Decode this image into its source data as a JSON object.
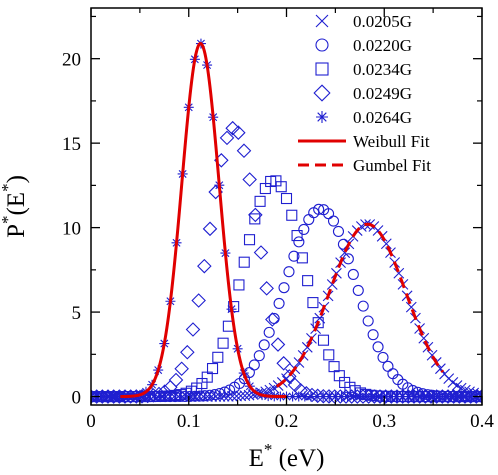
{
  "chart_data": {
    "type": "scatter",
    "xlabel": "E* (eV)",
    "ylabel": "P*(E*)",
    "xlabel_parts": {
      "main": "E",
      "sup": "*",
      "rest": " (eV)"
    },
    "ylabel_parts": {
      "a": "P",
      "a_sup": "*",
      "b": "(E",
      "b_sup": "*",
      "c": ")"
    },
    "xlim": [
      0,
      0.4
    ],
    "ylim": [
      -0.5,
      23
    ],
    "x_ticks": [
      0,
      0.1,
      0.2,
      0.3,
      0.4
    ],
    "x_tick_labels": [
      "0",
      "0.1",
      "0.2",
      "0.3",
      "0.4"
    ],
    "y_ticks": [
      0,
      5,
      10,
      15,
      20
    ],
    "y_tick_labels": [
      "0",
      "5",
      "10",
      "15",
      "20"
    ],
    "grid": false,
    "legend_position": "top-right",
    "colors": {
      "markers": "#1f1fd0",
      "fit": "#e00000"
    },
    "series": [
      {
        "name": "0.0205G",
        "marker": "cross",
        "color": "#1f1fd0",
        "distribution": {
          "kind": "gaussian",
          "mean": 0.283,
          "sd": 0.039,
          "peak": 10.2
        },
        "x_range": [
          0.0,
          0.4
        ],
        "n_points": 95
      },
      {
        "name": "0.0220G",
        "marker": "circle",
        "color": "#1f1fd0",
        "distribution": {
          "kind": "gaussian",
          "mean": 0.235,
          "sd": 0.036,
          "peak": 11.1
        },
        "x_range": [
          0.0,
          0.4
        ],
        "n_points": 80
      },
      {
        "name": "0.0234G",
        "marker": "square",
        "color": "#1f1fd0",
        "distribution": {
          "kind": "gaussian",
          "mean": 0.187,
          "sd": 0.031,
          "peak": 12.8
        },
        "x_range": [
          0.0,
          0.4
        ],
        "n_points": 75
      },
      {
        "name": "0.0249G",
        "marker": "diamond",
        "color": "#1f1fd0",
        "distribution": {
          "kind": "gaussian",
          "mean": 0.146,
          "sd": 0.025,
          "peak": 15.9
        },
        "x_range": [
          0.0,
          0.4
        ],
        "n_points": 70
      },
      {
        "name": "0.0264G",
        "marker": "star",
        "color": "#1f1fd0",
        "distribution": {
          "kind": "gaussian",
          "mean": 0.112,
          "sd": 0.019,
          "peak": 20.9
        },
        "x_range": [
          0.0,
          0.4
        ],
        "n_points": 65
      }
    ],
    "fits": [
      {
        "name": "Weibull Fit",
        "style": "solid",
        "color": "#e00000",
        "distribution": {
          "kind": "gaussian",
          "mean": 0.112,
          "sd": 0.019,
          "peak": 20.9
        },
        "x_range": [
          0.03,
          0.2
        ]
      },
      {
        "name": "Gumbel Fit",
        "style": "dashed",
        "color": "#e00000",
        "distribution": {
          "kind": "gaussian",
          "mean": 0.283,
          "sd": 0.039,
          "peak": 10.2
        },
        "x_range": [
          0.19,
          0.36
        ]
      }
    ]
  }
}
